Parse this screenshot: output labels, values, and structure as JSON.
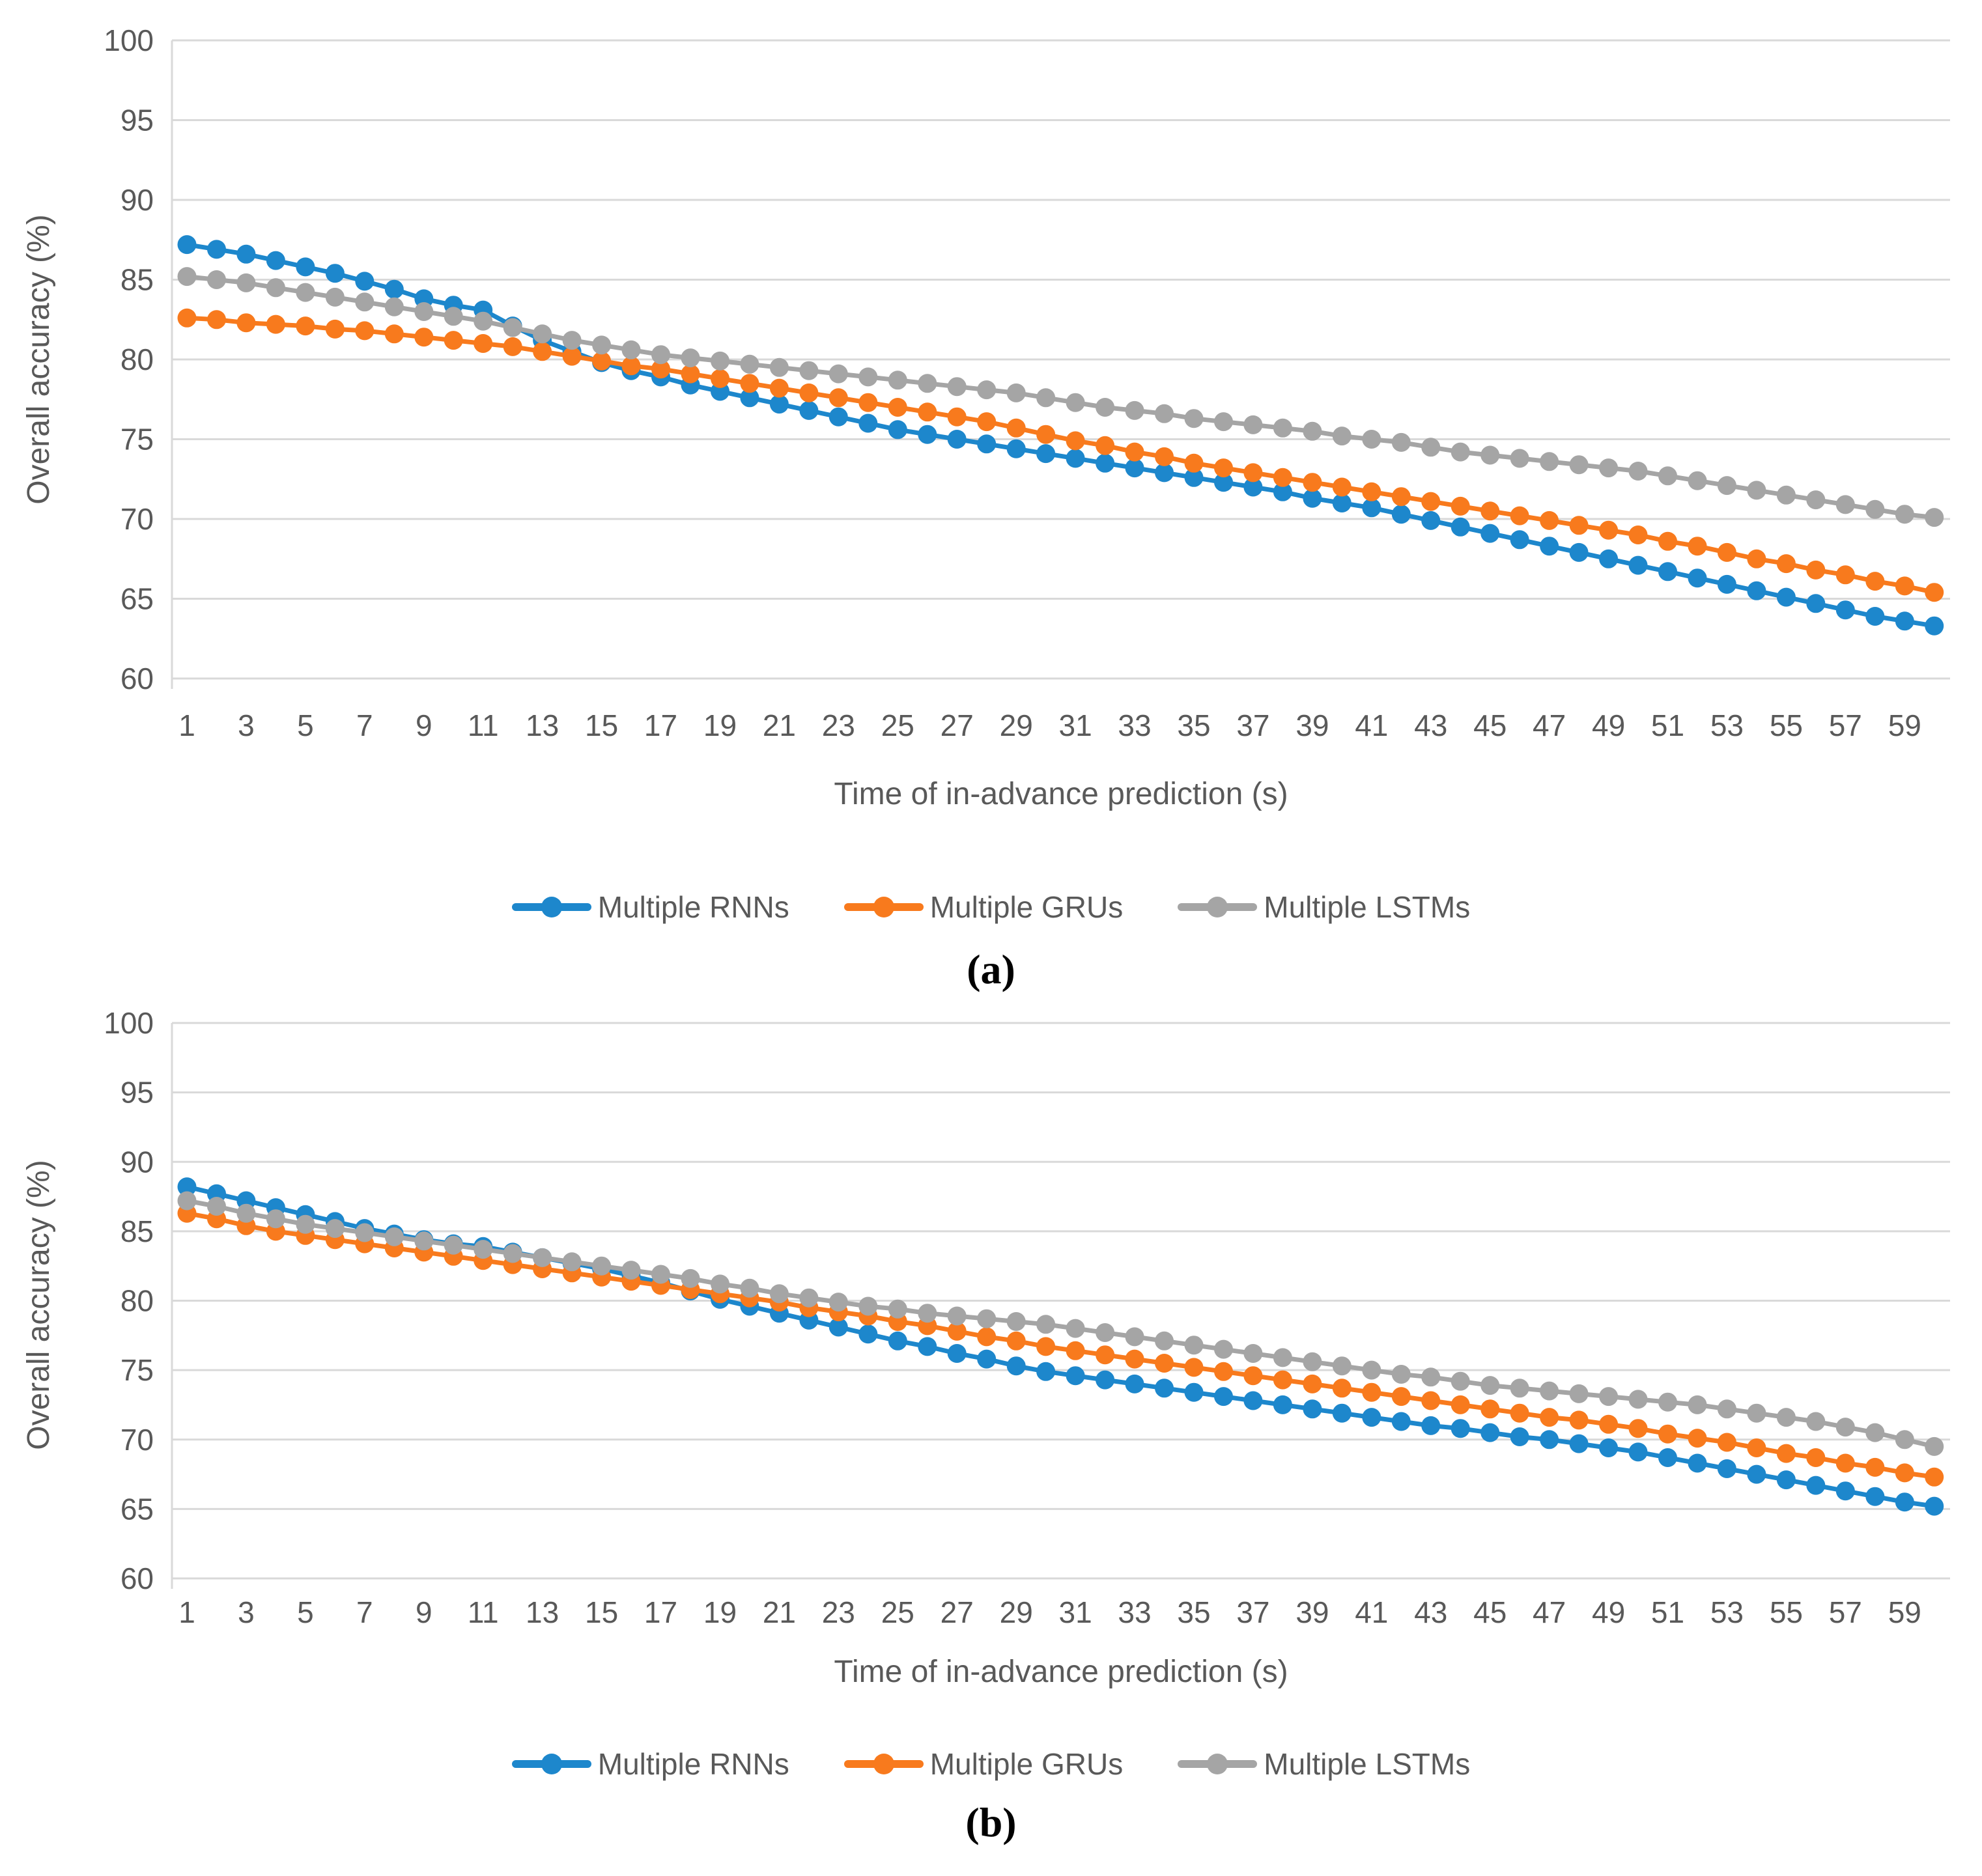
{
  "figure": {
    "background": "#ffffff",
    "grid_color": "#D9D9D9",
    "text_color": "#595959"
  },
  "chart_data": [
    {
      "type": "line",
      "caption": "(a)",
      "xlabel": "Time of in-advance prediction (s)",
      "ylabel": "Overall accuracy (%)",
      "xlim": [
        1,
        60
      ],
      "ylim": [
        60,
        100
      ],
      "yticks": [
        100,
        95,
        90,
        85,
        80,
        75,
        70,
        65,
        60
      ],
      "xticks": [
        1,
        3,
        5,
        7,
        9,
        11,
        13,
        15,
        17,
        19,
        21,
        23,
        25,
        27,
        29,
        31,
        33,
        35,
        37,
        39,
        41,
        43,
        45,
        47,
        49,
        51,
        53,
        55,
        57,
        59
      ],
      "grid": "horizontal",
      "legend_position": "bottom",
      "x": [
        1,
        2,
        3,
        4,
        5,
        6,
        7,
        8,
        9,
        10,
        11,
        12,
        13,
        14,
        15,
        16,
        17,
        18,
        19,
        20,
        21,
        22,
        23,
        24,
        25,
        26,
        27,
        28,
        29,
        30,
        31,
        32,
        33,
        34,
        35,
        36,
        37,
        38,
        39,
        40,
        41,
        42,
        43,
        44,
        45,
        46,
        47,
        48,
        49,
        50,
        51,
        52,
        53,
        54,
        55,
        56,
        57,
        58,
        59,
        60
      ],
      "series": [
        {
          "name": "Multiple RNNs",
          "color": "#1D87CC",
          "values": [
            87.2,
            86.9,
            86.6,
            86.2,
            85.8,
            85.4,
            84.9,
            84.4,
            83.8,
            83.4,
            83.1,
            82.1,
            81.2,
            80.5,
            79.8,
            79.3,
            78.9,
            78.4,
            78.0,
            77.6,
            77.2,
            76.8,
            76.4,
            76.0,
            75.6,
            75.3,
            75.0,
            74.7,
            74.4,
            74.1,
            73.8,
            73.5,
            73.2,
            72.9,
            72.6,
            72.3,
            72.0,
            71.7,
            71.3,
            71.0,
            70.7,
            70.3,
            69.9,
            69.5,
            69.1,
            68.7,
            68.3,
            67.9,
            67.5,
            67.1,
            66.7,
            66.3,
            65.9,
            65.5,
            65.1,
            64.7,
            64.3,
            63.9,
            63.6,
            63.3
          ]
        },
        {
          "name": "Multiple GRUs",
          "color": "#F87A1D",
          "values": [
            82.6,
            82.5,
            82.3,
            82.2,
            82.1,
            81.9,
            81.8,
            81.6,
            81.4,
            81.2,
            81.0,
            80.8,
            80.5,
            80.2,
            79.9,
            79.6,
            79.4,
            79.1,
            78.8,
            78.5,
            78.2,
            77.9,
            77.6,
            77.3,
            77.0,
            76.7,
            76.4,
            76.1,
            75.7,
            75.3,
            74.9,
            74.6,
            74.2,
            73.9,
            73.5,
            73.2,
            72.9,
            72.6,
            72.3,
            72.0,
            71.7,
            71.4,
            71.1,
            70.8,
            70.5,
            70.2,
            69.9,
            69.6,
            69.3,
            69.0,
            68.6,
            68.3,
            67.9,
            67.5,
            67.2,
            66.8,
            66.5,
            66.1,
            65.8,
            65.4
          ]
        },
        {
          "name": "Multiple LSTMs",
          "color": "#A5A5A5",
          "values": [
            85.2,
            85.0,
            84.8,
            84.5,
            84.2,
            83.9,
            83.6,
            83.3,
            83.0,
            82.7,
            82.4,
            82.0,
            81.6,
            81.2,
            80.9,
            80.6,
            80.3,
            80.1,
            79.9,
            79.7,
            79.5,
            79.3,
            79.1,
            78.9,
            78.7,
            78.5,
            78.3,
            78.1,
            77.9,
            77.6,
            77.3,
            77.0,
            76.8,
            76.6,
            76.3,
            76.1,
            75.9,
            75.7,
            75.5,
            75.2,
            75.0,
            74.8,
            74.5,
            74.2,
            74.0,
            73.8,
            73.6,
            73.4,
            73.2,
            73.0,
            72.7,
            72.4,
            72.1,
            71.8,
            71.5,
            71.2,
            70.9,
            70.6,
            70.3,
            70.1
          ]
        }
      ]
    },
    {
      "type": "line",
      "caption": "(b)",
      "xlabel": "Time of in-advance prediction (s)",
      "ylabel": "Overall accuracy (%)",
      "xlim": [
        1,
        60
      ],
      "ylim": [
        60,
        100
      ],
      "yticks": [
        100,
        95,
        90,
        85,
        80,
        75,
        70,
        65,
        60
      ],
      "xticks": [
        1,
        3,
        5,
        7,
        9,
        11,
        13,
        15,
        17,
        19,
        21,
        23,
        25,
        27,
        29,
        31,
        33,
        35,
        37,
        39,
        41,
        43,
        45,
        47,
        49,
        51,
        53,
        55,
        57,
        59
      ],
      "grid": "horizontal",
      "legend_position": "bottom",
      "x": [
        1,
        2,
        3,
        4,
        5,
        6,
        7,
        8,
        9,
        10,
        11,
        12,
        13,
        14,
        15,
        16,
        17,
        18,
        19,
        20,
        21,
        22,
        23,
        24,
        25,
        26,
        27,
        28,
        29,
        30,
        31,
        32,
        33,
        34,
        35,
        36,
        37,
        38,
        39,
        40,
        41,
        42,
        43,
        44,
        45,
        46,
        47,
        48,
        49,
        50,
        51,
        52,
        53,
        54,
        55,
        56,
        57,
        58,
        59,
        60
      ],
      "series": [
        {
          "name": "Multiple RNNs",
          "color": "#1D87CC",
          "values": [
            88.2,
            87.7,
            87.2,
            86.7,
            86.2,
            85.7,
            85.2,
            84.8,
            84.4,
            84.1,
            83.9,
            83.5,
            83.1,
            82.7,
            82.3,
            81.8,
            81.3,
            80.7,
            80.1,
            79.6,
            79.1,
            78.6,
            78.1,
            77.6,
            77.1,
            76.7,
            76.2,
            75.8,
            75.3,
            74.9,
            74.6,
            74.3,
            74.0,
            73.7,
            73.4,
            73.1,
            72.8,
            72.5,
            72.2,
            71.9,
            71.6,
            71.3,
            71.0,
            70.8,
            70.5,
            70.2,
            70.0,
            69.7,
            69.4,
            69.1,
            68.7,
            68.3,
            67.9,
            67.5,
            67.1,
            66.7,
            66.3,
            65.9,
            65.5,
            65.2
          ]
        },
        {
          "name": "Multiple GRUs",
          "color": "#F87A1D",
          "values": [
            86.3,
            85.9,
            85.4,
            85.0,
            84.7,
            84.4,
            84.1,
            83.8,
            83.5,
            83.2,
            82.9,
            82.6,
            82.3,
            82.0,
            81.7,
            81.4,
            81.1,
            80.8,
            80.5,
            80.2,
            79.9,
            79.5,
            79.2,
            78.9,
            78.5,
            78.2,
            77.8,
            77.4,
            77.1,
            76.7,
            76.4,
            76.1,
            75.8,
            75.5,
            75.2,
            74.9,
            74.6,
            74.3,
            74.0,
            73.7,
            73.4,
            73.1,
            72.8,
            72.5,
            72.2,
            71.9,
            71.6,
            71.4,
            71.1,
            70.8,
            70.4,
            70.1,
            69.8,
            69.4,
            69.0,
            68.7,
            68.3,
            68.0,
            67.6,
            67.3
          ]
        },
        {
          "name": "Multiple LSTMs",
          "color": "#A5A5A5",
          "values": [
            87.2,
            86.8,
            86.3,
            85.9,
            85.5,
            85.2,
            84.9,
            84.6,
            84.3,
            84.0,
            83.7,
            83.4,
            83.1,
            82.8,
            82.5,
            82.2,
            81.9,
            81.6,
            81.2,
            80.9,
            80.5,
            80.2,
            79.9,
            79.6,
            79.4,
            79.1,
            78.9,
            78.7,
            78.5,
            78.3,
            78.0,
            77.7,
            77.4,
            77.1,
            76.8,
            76.5,
            76.2,
            75.9,
            75.6,
            75.3,
            75.0,
            74.7,
            74.5,
            74.2,
            73.9,
            73.7,
            73.5,
            73.3,
            73.1,
            72.9,
            72.7,
            72.5,
            72.2,
            71.9,
            71.6,
            71.3,
            70.9,
            70.5,
            70.0,
            69.5
          ]
        }
      ]
    }
  ]
}
